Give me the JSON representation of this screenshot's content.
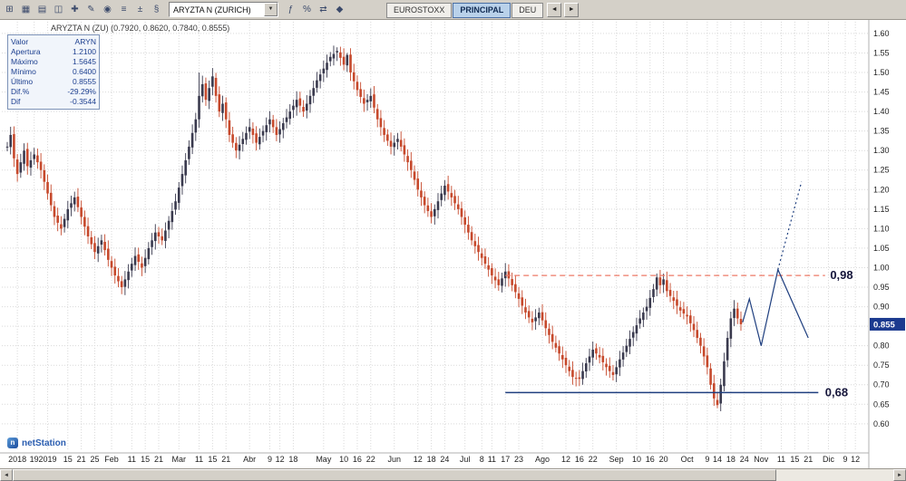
{
  "toolbar": {
    "left_icons": [
      {
        "name": "new-workspace-icon",
        "glyph": "⊞"
      },
      {
        "name": "grid-layout-icon",
        "glyph": "▦"
      },
      {
        "name": "horizontal-split-icon",
        "glyph": "▤"
      },
      {
        "name": "vertical-split-icon",
        "glyph": "◫"
      },
      {
        "name": "add-chart-icon",
        "glyph": "✚"
      },
      {
        "name": "draw-tool-icon",
        "glyph": "✎"
      },
      {
        "name": "crosshair-icon",
        "glyph": "◉"
      },
      {
        "name": "list-icon",
        "glyph": "≡"
      },
      {
        "name": "scale-icon",
        "glyph": "±"
      },
      {
        "name": "settings-icon",
        "glyph": "§"
      }
    ],
    "symbol_selector": {
      "value": "ARYZTA N (ZURICH)"
    },
    "right_icons": [
      {
        "name": "indicator-icon",
        "glyph": "ƒ"
      },
      {
        "name": "percent-icon",
        "glyph": "%"
      },
      {
        "name": "compare-icon",
        "glyph": "⇄"
      },
      {
        "name": "marker-icon",
        "glyph": "◆"
      }
    ],
    "tabs": [
      {
        "label": "EUROSTOXX",
        "active": false
      },
      {
        "label": "PRINCIPAL",
        "active": true
      },
      {
        "label": "DEU",
        "active": false
      }
    ],
    "nav": {
      "prev": "◄",
      "next": "►"
    }
  },
  "chart": {
    "title": "ARYZTA N (ZU) (0.7920, 0.8620, 0.7840, 0.8555)"
  },
  "info_panel": {
    "rows": [
      {
        "label": "Valor",
        "value": "ARYN"
      },
      {
        "label": "Apertura",
        "value": "1.2100"
      },
      {
        "label": "Máximo",
        "value": "1.5645"
      },
      {
        "label": "Mínimo",
        "value": "0.6400"
      },
      {
        "label": "Último",
        "value": "0.8555"
      },
      {
        "label": "Dif.%",
        "value": "-29.29%"
      },
      {
        "label": "Dif",
        "value": "-0.3544"
      }
    ]
  },
  "chart_data": {
    "type": "candlestick",
    "instrument": "ARYZTA N (ZURICH)",
    "timeframe": "daily, Dec 2018 - Dec 2019",
    "ylim": [
      0.53,
      1.63
    ],
    "y_tick_labels": [
      "1.60",
      "1.55",
      "1.50",
      "1.45",
      "1.40",
      "1.35",
      "1.30",
      "1.25",
      "1.20",
      "1.15",
      "1.10",
      "1.05",
      "1.00",
      "0.95",
      "0.90",
      "0.85",
      "0.80",
      "0.75",
      "0.70",
      "0.65",
      "0.60"
    ],
    "x_labels": [
      {
        "text": "2018",
        "day": 3
      },
      {
        "text": "19",
        "day": 8
      },
      {
        "text": "2019",
        "day": 12
      },
      {
        "text": "15",
        "day": 18
      },
      {
        "text": "21",
        "day": 22
      },
      {
        "text": "25",
        "day": 26
      },
      {
        "text": "Feb",
        "day": 31
      },
      {
        "text": "11",
        "day": 37
      },
      {
        "text": "15",
        "day": 41
      },
      {
        "text": "21",
        "day": 45
      },
      {
        "text": "Mar",
        "day": 51
      },
      {
        "text": "11",
        "day": 57
      },
      {
        "text": "15",
        "day": 61
      },
      {
        "text": "21",
        "day": 65
      },
      {
        "text": "Abr",
        "day": 72
      },
      {
        "text": "9",
        "day": 78
      },
      {
        "text": "12",
        "day": 81
      },
      {
        "text": "18",
        "day": 85
      },
      {
        "text": "May",
        "day": 94
      },
      {
        "text": "10",
        "day": 100
      },
      {
        "text": "16",
        "day": 104
      },
      {
        "text": "22",
        "day": 108
      },
      {
        "text": "Jun",
        "day": 115
      },
      {
        "text": "12",
        "day": 122
      },
      {
        "text": "18",
        "day": 126
      },
      {
        "text": "24",
        "day": 130
      },
      {
        "text": "Jul",
        "day": 136
      },
      {
        "text": "8",
        "day": 141
      },
      {
        "text": "11",
        "day": 144
      },
      {
        "text": "17",
        "day": 148
      },
      {
        "text": "23",
        "day": 152
      },
      {
        "text": "Ago",
        "day": 159
      },
      {
        "text": "12",
        "day": 166
      },
      {
        "text": "16",
        "day": 170
      },
      {
        "text": "22",
        "day": 174
      },
      {
        "text": "Sep",
        "day": 181
      },
      {
        "text": "10",
        "day": 187
      },
      {
        "text": "16",
        "day": 191
      },
      {
        "text": "20",
        "day": 195
      },
      {
        "text": "Oct",
        "day": 202
      },
      {
        "text": "9",
        "day": 208
      },
      {
        "text": "14",
        "day": 211
      },
      {
        "text": "18",
        "day": 215
      },
      {
        "text": "24",
        "day": 219
      },
      {
        "text": "Nov",
        "day": 224
      },
      {
        "text": "11",
        "day": 230
      },
      {
        "text": "15",
        "day": 234
      },
      {
        "text": "21",
        "day": 238
      },
      {
        "text": "Dic",
        "day": 244
      },
      {
        "text": "9",
        "day": 249
      },
      {
        "text": "12",
        "day": 252
      }
    ],
    "last_day": 218,
    "total_days": 256,
    "close_keypoints": [
      [
        0,
        1.31
      ],
      [
        1,
        1.34
      ],
      [
        2,
        1.28
      ],
      [
        3,
        1.24
      ],
      [
        4,
        1.27
      ],
      [
        5,
        1.3
      ],
      [
        6,
        1.26
      ],
      [
        8,
        1.29
      ],
      [
        10,
        1.25
      ],
      [
        12,
        1.19
      ],
      [
        14,
        1.13
      ],
      [
        16,
        1.1
      ],
      [
        18,
        1.15
      ],
      [
        20,
        1.18
      ],
      [
        22,
        1.13
      ],
      [
        24,
        1.08
      ],
      [
        26,
        1.04
      ],
      [
        28,
        1.07
      ],
      [
        30,
        1.02
      ],
      [
        32,
        0.98
      ],
      [
        34,
        0.95
      ],
      [
        36,
        0.99
      ],
      [
        38,
        1.03
      ],
      [
        40,
        1.0
      ],
      [
        42,
        1.05
      ],
      [
        44,
        1.09
      ],
      [
        46,
        1.07
      ],
      [
        48,
        1.12
      ],
      [
        50,
        1.17
      ],
      [
        52,
        1.24
      ],
      [
        54,
        1.31
      ],
      [
        56,
        1.38
      ],
      [
        57,
        1.44
      ],
      [
        58,
        1.47
      ],
      [
        59,
        1.43
      ],
      [
        60,
        1.46
      ],
      [
        61,
        1.49
      ],
      [
        62,
        1.44
      ],
      [
        63,
        1.4
      ],
      [
        64,
        1.42
      ],
      [
        65,
        1.38
      ],
      [
        66,
        1.34
      ],
      [
        68,
        1.3
      ],
      [
        70,
        1.33
      ],
      [
        72,
        1.36
      ],
      [
        74,
        1.32
      ],
      [
        76,
        1.35
      ],
      [
        78,
        1.38
      ],
      [
        80,
        1.34
      ],
      [
        82,
        1.37
      ],
      [
        84,
        1.4
      ],
      [
        86,
        1.43
      ],
      [
        88,
        1.4
      ],
      [
        90,
        1.44
      ],
      [
        92,
        1.48
      ],
      [
        94,
        1.51
      ],
      [
        96,
        1.54
      ],
      [
        98,
        1.555
      ],
      [
        100,
        1.52
      ],
      [
        101,
        1.545
      ],
      [
        102,
        1.5
      ],
      [
        104,
        1.455
      ],
      [
        106,
        1.42
      ],
      [
        108,
        1.44
      ],
      [
        110,
        1.38
      ],
      [
        112,
        1.34
      ],
      [
        114,
        1.31
      ],
      [
        116,
        1.33
      ],
      [
        118,
        1.29
      ],
      [
        120,
        1.25
      ],
      [
        122,
        1.2
      ],
      [
        124,
        1.16
      ],
      [
        126,
        1.13
      ],
      [
        128,
        1.17
      ],
      [
        130,
        1.21
      ],
      [
        132,
        1.18
      ],
      [
        134,
        1.15
      ],
      [
        136,
        1.11
      ],
      [
        138,
        1.07
      ],
      [
        140,
        1.04
      ],
      [
        142,
        1.01
      ],
      [
        144,
        0.98
      ],
      [
        146,
        0.955
      ],
      [
        148,
        0.99
      ],
      [
        150,
        0.955
      ],
      [
        152,
        0.92
      ],
      [
        154,
        0.885
      ],
      [
        156,
        0.86
      ],
      [
        158,
        0.885
      ],
      [
        160,
        0.845
      ],
      [
        162,
        0.81
      ],
      [
        164,
        0.78
      ],
      [
        166,
        0.75
      ],
      [
        168,
        0.72
      ],
      [
        170,
        0.715
      ],
      [
        172,
        0.755
      ],
      [
        174,
        0.79
      ],
      [
        176,
        0.77
      ],
      [
        178,
        0.745
      ],
      [
        180,
        0.725
      ],
      [
        182,
        0.765
      ],
      [
        184,
        0.8
      ],
      [
        186,
        0.835
      ],
      [
        188,
        0.87
      ],
      [
        190,
        0.9
      ],
      [
        192,
        0.945
      ],
      [
        193,
        0.975
      ],
      [
        194,
        0.955
      ],
      [
        195,
        0.97
      ],
      [
        196,
        0.94
      ],
      [
        198,
        0.915
      ],
      [
        200,
        0.89
      ],
      [
        202,
        0.875
      ],
      [
        204,
        0.84
      ],
      [
        206,
        0.8
      ],
      [
        208,
        0.745
      ],
      [
        209,
        0.7
      ],
      [
        210,
        0.665
      ],
      [
        211,
        0.648
      ],
      [
        212,
        0.7
      ],
      [
        213,
        0.76
      ],
      [
        214,
        0.82
      ],
      [
        215,
        0.87
      ],
      [
        216,
        0.895
      ],
      [
        217,
        0.87
      ],
      [
        218,
        0.855
      ]
    ],
    "wick_overrides": [
      {
        "day": 34,
        "low": 0.932
      },
      {
        "day": 57,
        "high": 1.5
      },
      {
        "day": 98,
        "high": 1.5645
      },
      {
        "day": 101,
        "high": 1.55
      },
      {
        "day": 168,
        "low": 0.7
      },
      {
        "day": 170,
        "low": 0.697
      },
      {
        "day": 193,
        "high": 0.985
      },
      {
        "day": 211,
        "low": 0.64
      }
    ],
    "colors": {
      "up": "#3a3a4e",
      "down": "#c6492c",
      "grid": "#d9d9d9",
      "axis": "#b0b0b0",
      "resistance": "#ee7866",
      "support": "#1f3f7f",
      "projection": "#1f3f7f",
      "price_box": "#1b3a8f",
      "label_text": "#15153a"
    },
    "annotations": {
      "resistance": {
        "price": 0.98,
        "label": "0,98",
        "from_day": 148,
        "to_day": 243,
        "label_day": 244.5
      },
      "support": {
        "price": 0.68,
        "label": "0,68",
        "from_day": 148,
        "to_day": 241,
        "label_day": 243
      },
      "projection_solid": [
        [
          218.5,
          0.86
        ],
        [
          220.5,
          0.92
        ],
        [
          224,
          0.8
        ],
        [
          229,
          0.995
        ],
        [
          238,
          0.82
        ]
      ],
      "projection_dotted": [
        [
          229,
          0.995
        ],
        [
          236,
          1.22
        ]
      ],
      "last_price": 0.855,
      "last_price_label": "0.855"
    }
  },
  "logo": {
    "mark": "n",
    "text": "netStation"
  },
  "scrollbar": {
    "left_arrow": "◄",
    "right_arrow": "►"
  }
}
